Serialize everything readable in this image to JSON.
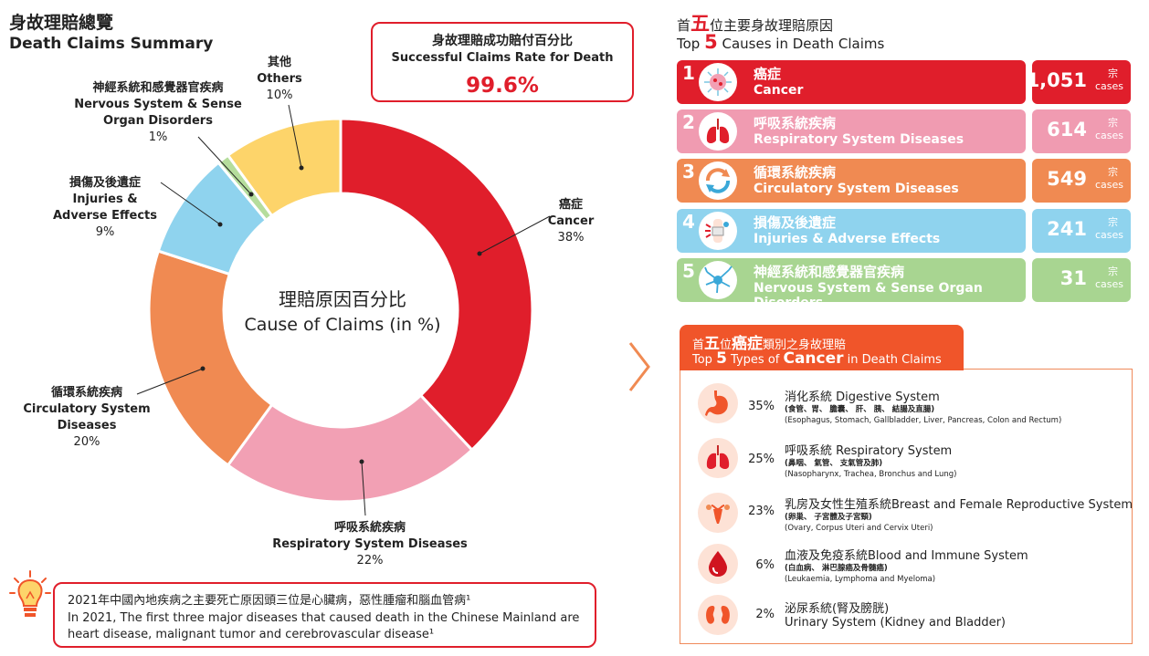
{
  "summary": {
    "title_zh": "身故理賠總覽",
    "title_en": "Death Claims Summary",
    "rate_title_zh": "身故理賠成功賠付百分比",
    "rate_title_en": "Successful Claims Rate for Death",
    "rate_value": "99.6%",
    "center_zh": "理賠原因百分比",
    "center_en": "Cause of Claims (in %)"
  },
  "chart_data": {
    "type": "pie",
    "donut": true,
    "categories": [
      "Cancer",
      "Respiratory System Diseases",
      "Circulatory System Diseases",
      "Injuries & Adverse Effects",
      "Nervous System & Sense Organ Disorders",
      "Others"
    ],
    "values": [
      38,
      22,
      20,
      9,
      1,
      10
    ],
    "colors": [
      "#e01e2b",
      "#f2a0b4",
      "#f08a52",
      "#8fd3ee",
      "#b5dd9c",
      "#fdd46a"
    ],
    "labels": [
      {
        "zh": "癌症",
        "en": "Cancer",
        "pct": "38%"
      },
      {
        "zh": "呼吸系統疾病",
        "en": "Respiratory System Diseases",
        "pct": "22%"
      },
      {
        "zh": "循環系統疾病",
        "en1": "Circulatory System",
        "en2": "Diseases",
        "pct": "20%"
      },
      {
        "zh": "損傷及後遺症",
        "en1": "Injuries &",
        "en2": "Adverse Effects",
        "pct": "9%"
      },
      {
        "zh": "神經系統和感覺器官疾病",
        "en1": "Nervous System & Sense",
        "en2": "Organ Disorders",
        "pct": "1%"
      },
      {
        "zh": "其他",
        "en": "Others",
        "pct": "10%"
      }
    ]
  },
  "note": {
    "line1": "2021年中國內地疾病之主要死亡原因頭三位是心臟病，惡性腫瘤和腦血管病¹",
    "line2": "In 2021, The first three major diseases that caused death in the Chinese Mainland are",
    "line3": "heart disease, malignant tumor and cerebrovascular disease¹"
  },
  "top5": {
    "title_zh_pre": "首",
    "title_zh_num": "五",
    "title_zh_post": "位主要身故理賠原因",
    "title_en_pre": "Top ",
    "title_en_num": "5",
    "title_en_post": " Causes in Death Claims",
    "unit_zh": "宗",
    "unit_en": "cases",
    "rows": [
      {
        "rank": "1",
        "zh": "癌症",
        "en": "Cancer",
        "count": "1,051",
        "color": "#e01e2b",
        "icon": "cancer-cell-icon"
      },
      {
        "rank": "2",
        "zh": "呼吸系統疾病",
        "en": "Respiratory System Diseases",
        "count": "614",
        "color": "#f09bb1",
        "icon": "lungs-icon"
      },
      {
        "rank": "3",
        "zh": "循環系統疾病",
        "en": "Circulatory System Diseases",
        "count": "549",
        "color": "#f08a52",
        "icon": "circulation-icon"
      },
      {
        "rank": "4",
        "zh": "損傷及後遺症",
        "en": "Injuries & Adverse Effects",
        "count": "241",
        "color": "#8fd3ee",
        "icon": "injury-icon"
      },
      {
        "rank": "5",
        "zh": "神經系統和感覺器官疾病",
        "en": "Nervous System & Sense Organ Disorders",
        "count": "31",
        "color": "#a8d591",
        "icon": "neuron-icon"
      }
    ]
  },
  "cancer": {
    "tab_zh_pre": "首",
    "tab_zh_num": "五",
    "tab_zh_mid": "位",
    "tab_zh_big": "癌症",
    "tab_zh_post": "類別之身故理賠",
    "tab_en_pre": "Top ",
    "tab_en_num": "5",
    "tab_en_mid": " Types of ",
    "tab_en_big": "Cancer",
    "tab_en_post": " in Death Claims",
    "items": [
      {
        "pct": "35%",
        "title": "消化系統 Digestive System",
        "sub_zh": "(食管、胃、 膽囊、  肝、 胰、 結腸及直腸)",
        "sub_en": "(Esophagus, Stomach, Gallbladder, Liver, Pancreas, Colon and Rectum)",
        "icon": "stomach-icon"
      },
      {
        "pct": "25%",
        "title": "呼吸系統 Respiratory System",
        "sub_zh": "(鼻咽、 氣管、 支氣管及肺)",
        "sub_en": "(Nasopharynx, Trachea, Bronchus and Lung)",
        "icon": "lungs-icon"
      },
      {
        "pct": "23%",
        "title": "乳房及女性生殖系統Breast and Female Reproductive System",
        "sub_zh": "(卵巢、 子宮體及子宮頸)",
        "sub_en": "(Ovary, Corpus Uteri and Cervix Uteri)",
        "icon": "uterus-icon"
      },
      {
        "pct": "6%",
        "title": "血液及免疫系統Blood and Immune System",
        "sub_zh": "(白血病、 淋巴腺癌及骨髓癌)",
        "sub_en": "(Leukaemia, Lymphoma and Myeloma)",
        "icon": "blood-drop-icon"
      },
      {
        "pct": "2%",
        "title": "泌尿系統(腎及膀胱)",
        "sub_en": "Urinary System (Kidney and Bladder)",
        "icon": "kidney-icon"
      }
    ]
  }
}
